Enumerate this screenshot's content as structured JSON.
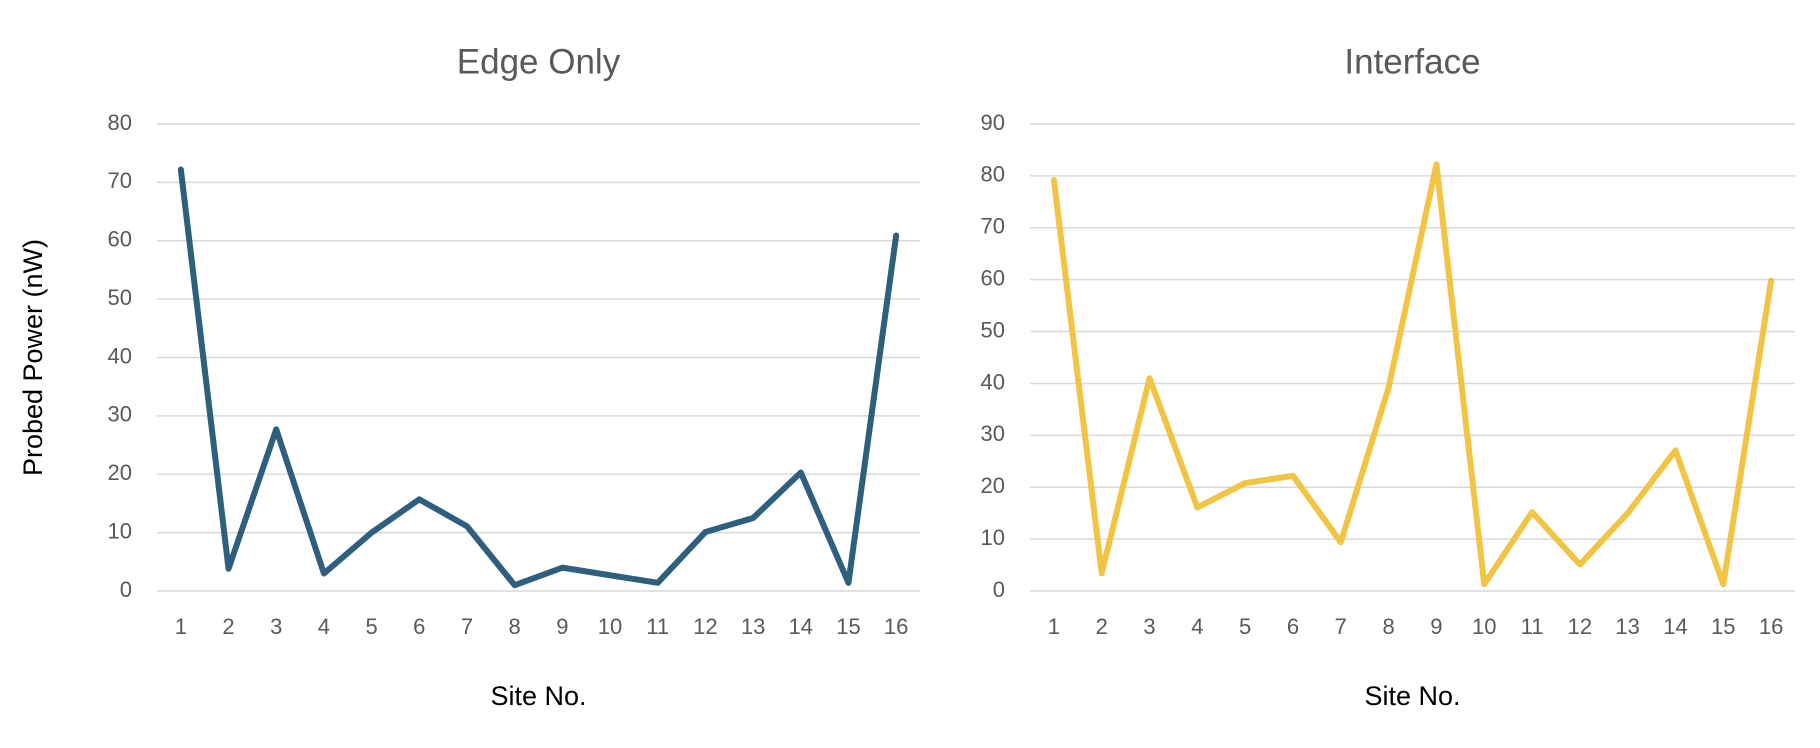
{
  "chart_data": [
    {
      "type": "line",
      "title": "Edge Only",
      "x_label": "Site No.",
      "y_label": "Probed Power (nW)",
      "categories": [
        "1",
        "2",
        "3",
        "4",
        "5",
        "6",
        "7",
        "8",
        "9",
        "10",
        "11",
        "12",
        "13",
        "14",
        "15",
        "16"
      ],
      "series": [
        {
          "color": "#2e5f7f",
          "values": [
            72.2,
            3.8,
            27.7,
            3.0,
            10,
            15.7,
            11.1,
            1.0,
            4.0,
            2.7,
            1.4,
            10.1,
            12.5,
            20.3,
            1.4,
            60.9
          ]
        }
      ],
      "ylim": [
        0,
        80
      ],
      "yticks": [
        0,
        10,
        20,
        30,
        40,
        50,
        60,
        70,
        80
      ],
      "grid": true
    },
    {
      "type": "line",
      "title": "Interface",
      "x_label": "Site No.",
      "categories": [
        "1",
        "2",
        "3",
        "4",
        "5",
        "6",
        "7",
        "8",
        "9",
        "10",
        "11",
        "12",
        "13",
        "14",
        "15",
        "16"
      ],
      "series": [
        {
          "color": "#f2c443",
          "values": [
            79.2,
            3.4,
            41,
            16.1,
            20.8,
            22.2,
            9.4,
            39.2,
            82.2,
            1.3,
            15.2,
            5.1,
            15,
            27.1,
            1.3,
            59.8
          ]
        }
      ],
      "ylim": [
        0,
        90
      ],
      "yticks": [
        0,
        10,
        20,
        30,
        40,
        50,
        60,
        70,
        80,
        90
      ],
      "grid": true
    }
  ]
}
